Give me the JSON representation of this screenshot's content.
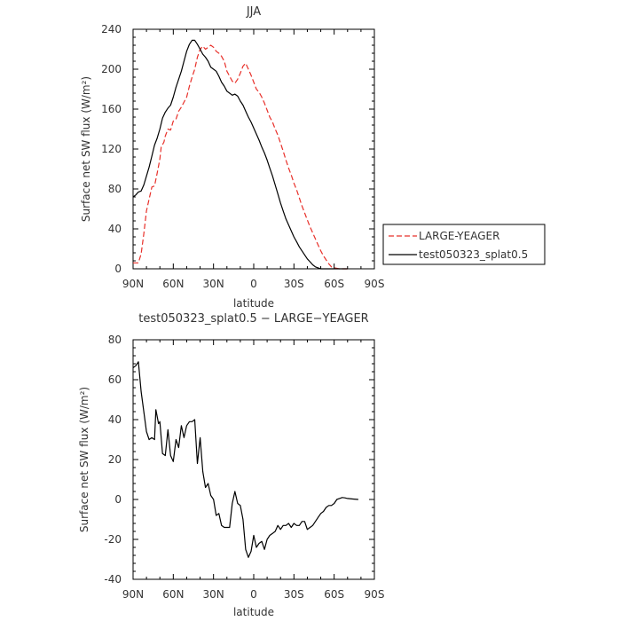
{
  "chart_data": [
    {
      "type": "line",
      "title": "JJA",
      "xlabel": "latitude",
      "ylabel": "Surface net SW flux (W/m²)",
      "xlim": [
        90,
        -90
      ],
      "ylim": [
        0,
        240
      ],
      "x_ticks": [
        {
          "value": 90,
          "label": "90N"
        },
        {
          "value": 60,
          "label": "60N"
        },
        {
          "value": 30,
          "label": "30N"
        },
        {
          "value": 0,
          "label": "0"
        },
        {
          "value": -30,
          "label": "30S"
        },
        {
          "value": -60,
          "label": "60S"
        },
        {
          "value": -90,
          "label": "90S"
        }
      ],
      "y_ticks": [
        0,
        40,
        80,
        120,
        160,
        200,
        240
      ],
      "legend": "right",
      "series": [
        {
          "name": "LARGE-YEAGER",
          "color": "#e8302a",
          "style": "dashed",
          "points": [
            [
              90,
              6
            ],
            [
              86,
              6
            ],
            [
              84,
              15
            ],
            [
              82,
              35
            ],
            [
              80,
              58
            ],
            [
              78,
              70
            ],
            [
              76,
              82
            ],
            [
              74,
              83
            ],
            [
              72,
              96
            ],
            [
              70,
              110
            ],
            [
              69,
              122
            ],
            [
              67,
              127
            ],
            [
              66,
              133
            ],
            [
              64,
              140
            ],
            [
              62,
              139
            ],
            [
              60,
              148
            ],
            [
              58,
              150
            ],
            [
              56,
              158
            ],
            [
              54,
              162
            ],
            [
              52,
              167
            ],
            [
              50,
              172
            ],
            [
              48,
              183
            ],
            [
              46,
              192
            ],
            [
              44,
              200
            ],
            [
              42,
              212
            ],
            [
              40,
              220
            ],
            [
              38,
              223
            ],
            [
              36,
              220
            ],
            [
              34,
              222
            ],
            [
              32,
              224
            ],
            [
              30,
              222
            ],
            [
              28,
              218
            ],
            [
              26,
              216
            ],
            [
              24,
              213
            ],
            [
              22,
              208
            ],
            [
              20,
              198
            ],
            [
              18,
              193
            ],
            [
              16,
              188
            ],
            [
              14,
              186
            ],
            [
              12,
              190
            ],
            [
              10,
              196
            ],
            [
              8,
              203
            ],
            [
              6,
              206
            ],
            [
              4,
              200
            ],
            [
              2,
              194
            ],
            [
              0,
              187
            ],
            [
              -2,
              180
            ],
            [
              -4,
              177
            ],
            [
              -6,
              172
            ],
            [
              -8,
              166
            ],
            [
              -10,
              159
            ],
            [
              -12,
              152
            ],
            [
              -14,
              147
            ],
            [
              -16,
              140
            ],
            [
              -18,
              134
            ],
            [
              -20,
              126
            ],
            [
              -22,
              118
            ],
            [
              -24,
              109
            ],
            [
              -26,
              101
            ],
            [
              -28,
              94
            ],
            [
              -30,
              86
            ],
            [
              -32,
              79
            ],
            [
              -34,
              71
            ],
            [
              -36,
              63
            ],
            [
              -38,
              56
            ],
            [
              -40,
              49
            ],
            [
              -42,
              42
            ],
            [
              -44,
              36
            ],
            [
              -46,
              30
            ],
            [
              -48,
              24
            ],
            [
              -50,
              18
            ],
            [
              -52,
              13
            ],
            [
              -54,
              9
            ],
            [
              -56,
              5
            ],
            [
              -58,
              2
            ],
            [
              -60,
              1
            ],
            [
              -64,
              0
            ],
            [
              -70,
              0
            ]
          ]
        },
        {
          "name": "test050323_splat0.5",
          "color": "#000000",
          "style": "solid",
          "points": [
            [
              90,
              72
            ],
            [
              88,
              74
            ],
            [
              86,
              77
            ],
            [
              84,
              78
            ],
            [
              82,
              84
            ],
            [
              80,
              93
            ],
            [
              78,
              102
            ],
            [
              76,
              113
            ],
            [
              74,
              124
            ],
            [
              72,
              131
            ],
            [
              70,
              140
            ],
            [
              68,
              151
            ],
            [
              66,
              157
            ],
            [
              64,
              161
            ],
            [
              62,
              164
            ],
            [
              60,
              172
            ],
            [
              58,
              182
            ],
            [
              56,
              190
            ],
            [
              54,
              198
            ],
            [
              52,
              208
            ],
            [
              50,
              218
            ],
            [
              48,
              225
            ],
            [
              46,
              229
            ],
            [
              44,
              229
            ],
            [
              42,
              225
            ],
            [
              40,
              220
            ],
            [
              38,
              215
            ],
            [
              36,
              212
            ],
            [
              34,
              208
            ],
            [
              32,
              202
            ],
            [
              30,
              200
            ],
            [
              28,
              198
            ],
            [
              26,
              193
            ],
            [
              24,
              187
            ],
            [
              22,
              183
            ],
            [
              20,
              178
            ],
            [
              18,
              176
            ],
            [
              16,
              174
            ],
            [
              14,
              175
            ],
            [
              12,
              173
            ],
            [
              10,
              168
            ],
            [
              8,
              164
            ],
            [
              6,
              158
            ],
            [
              4,
              152
            ],
            [
              2,
              147
            ],
            [
              0,
              141
            ],
            [
              -2,
              135
            ],
            [
              -4,
              129
            ],
            [
              -6,
              122
            ],
            [
              -8,
              116
            ],
            [
              -10,
              109
            ],
            [
              -12,
              101
            ],
            [
              -14,
              93
            ],
            [
              -16,
              84
            ],
            [
              -18,
              75
            ],
            [
              -20,
              66
            ],
            [
              -22,
              58
            ],
            [
              -24,
              50
            ],
            [
              -26,
              44
            ],
            [
              -28,
              38
            ],
            [
              -30,
              32
            ],
            [
              -32,
              27
            ],
            [
              -34,
              22
            ],
            [
              -36,
              18
            ],
            [
              -38,
              14
            ],
            [
              -40,
              10
            ],
            [
              -42,
              7
            ],
            [
              -44,
              4
            ],
            [
              -46,
              2
            ],
            [
              -48,
              1
            ],
            [
              -50,
              0
            ],
            [
              -60,
              0
            ],
            [
              -70,
              0
            ]
          ]
        }
      ]
    },
    {
      "type": "line",
      "title": "test050323_splat0.5 − LARGE−YEAGER",
      "xlabel": "latitude",
      "ylabel": "Surface net SW flux (W/m²)",
      "xlim": [
        90,
        -90
      ],
      "ylim": [
        -40,
        80
      ],
      "x_ticks": [
        {
          "value": 90,
          "label": "90N"
        },
        {
          "value": 60,
          "label": "60N"
        },
        {
          "value": 30,
          "label": "30N"
        },
        {
          "value": 0,
          "label": "0"
        },
        {
          "value": -30,
          "label": "30S"
        },
        {
          "value": -60,
          "label": "60S"
        },
        {
          "value": -90,
          "label": "90S"
        }
      ],
      "y_ticks": [
        -40,
        -20,
        0,
        20,
        40,
        60,
        80
      ],
      "series": [
        {
          "color": "#000000",
          "style": "solid",
          "points": [
            [
              90,
              66
            ],
            [
              88,
              67
            ],
            [
              86,
              69
            ],
            [
              84,
              54
            ],
            [
              82,
              44
            ],
            [
              80,
              34
            ],
            [
              78,
              30
            ],
            [
              76,
              31
            ],
            [
              74,
              30
            ],
            [
              73,
              45
            ],
            [
              71,
              38
            ],
            [
              70,
              39
            ],
            [
              68,
              23
            ],
            [
              66,
              22
            ],
            [
              64,
              35
            ],
            [
              62,
              22
            ],
            [
              60,
              19
            ],
            [
              58,
              30
            ],
            [
              56,
              26
            ],
            [
              54,
              37
            ],
            [
              52,
              31
            ],
            [
              50,
              37
            ],
            [
              48,
              39
            ],
            [
              46,
              39
            ],
            [
              44,
              40
            ],
            [
              42,
              18
            ],
            [
              40,
              31
            ],
            [
              38,
              14
            ],
            [
              36,
              6
            ],
            [
              34,
              8
            ],
            [
              32,
              2
            ],
            [
              30,
              0
            ],
            [
              28,
              -8
            ],
            [
              26,
              -7
            ],
            [
              24,
              -13
            ],
            [
              22,
              -14
            ],
            [
              20,
              -14
            ],
            [
              18,
              -14
            ],
            [
              16,
              -2
            ],
            [
              14,
              4
            ],
            [
              12,
              -2
            ],
            [
              10,
              -3
            ],
            [
              8,
              -10
            ],
            [
              6,
              -25
            ],
            [
              4,
              -29
            ],
            [
              2,
              -26
            ],
            [
              0,
              -18
            ],
            [
              -2,
              -24
            ],
            [
              -4,
              -22
            ],
            [
              -6,
              -21
            ],
            [
              -8,
              -25
            ],
            [
              -10,
              -20
            ],
            [
              -12,
              -18
            ],
            [
              -14,
              -17
            ],
            [
              -16,
              -16
            ],
            [
              -18,
              -13
            ],
            [
              -20,
              -15
            ],
            [
              -22,
              -13
            ],
            [
              -24,
              -13
            ],
            [
              -26,
              -12
            ],
            [
              -28,
              -14
            ],
            [
              -30,
              -12
            ],
            [
              -32,
              -13
            ],
            [
              -34,
              -13
            ],
            [
              -36,
              -11
            ],
            [
              -38,
              -11
            ],
            [
              -40,
              -15
            ],
            [
              -42,
              -14
            ],
            [
              -44,
              -13
            ],
            [
              -46,
              -11
            ],
            [
              -48,
              -9
            ],
            [
              -50,
              -7
            ],
            [
              -52,
              -6
            ],
            [
              -54,
              -4
            ],
            [
              -56,
              -3
            ],
            [
              -58,
              -3
            ],
            [
              -60,
              -2
            ],
            [
              -62,
              0
            ],
            [
              -64,
              0.5
            ],
            [
              -66,
              1
            ],
            [
              -68,
              0.8
            ],
            [
              -70,
              0.5
            ],
            [
              -74,
              0.2
            ],
            [
              -78,
              0
            ]
          ]
        }
      ]
    }
  ]
}
